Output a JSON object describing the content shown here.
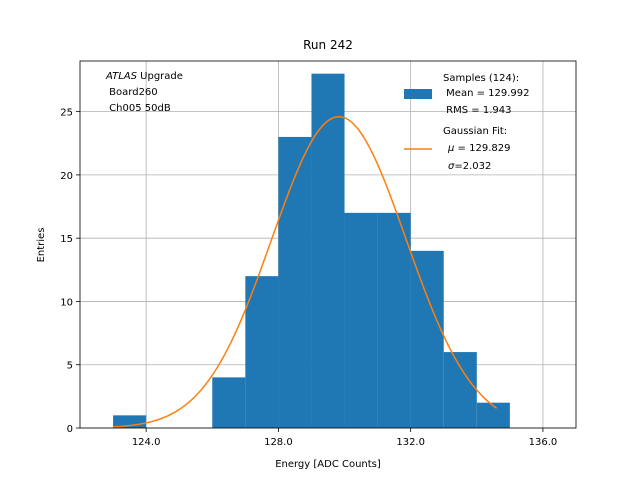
{
  "chart_data": {
    "type": "bar",
    "title": "Run 242",
    "xlabel": "Energy [ADC Counts]",
    "ylabel": "Entries",
    "xlim": [
      122.0,
      137.0
    ],
    "ylim": [
      0,
      29
    ],
    "xticks": [
      124.0,
      128.0,
      132.0,
      136.0
    ],
    "xtick_labels": [
      "124.0",
      "128.0",
      "132.0",
      "136.0"
    ],
    "yticks": [
      0,
      5,
      10,
      15,
      20,
      25
    ],
    "ytick_labels": [
      "0",
      "5",
      "10",
      "15",
      "20",
      "25"
    ],
    "grid": true,
    "bar_color": "#1f77b4",
    "fit_color": "#ff7f0e",
    "bins": [
      {
        "left": 123,
        "right": 124,
        "count": 1
      },
      {
        "left": 124,
        "right": 125,
        "count": 0
      },
      {
        "left": 125,
        "right": 126,
        "count": 0
      },
      {
        "left": 126,
        "right": 127,
        "count": 4
      },
      {
        "left": 127,
        "right": 128,
        "count": 12
      },
      {
        "left": 128,
        "right": 129,
        "count": 23
      },
      {
        "left": 129,
        "right": 130,
        "count": 28
      },
      {
        "left": 130,
        "right": 131,
        "count": 17
      },
      {
        "left": 131,
        "right": 132,
        "count": 17
      },
      {
        "left": 132,
        "right": 133,
        "count": 14
      },
      {
        "left": 133,
        "right": 134,
        "count": 6
      },
      {
        "left": 134,
        "right": 135,
        "count": 2
      }
    ],
    "fit": {
      "mu": 129.829,
      "sigma": 2.032,
      "peak": 24.6,
      "x_range": [
        123.0,
        134.6
      ]
    },
    "annotation": {
      "line1_italic": "ATLAS",
      "line1_rest": " Upgrade",
      "line2": " Board260",
      "line3": " Ch005 50dB"
    },
    "legend": {
      "placement": "top-right",
      "samples_title": "Samples (124):",
      "samples_mean": " Mean = 129.992",
      "samples_rms": " RMS = 1.943",
      "fit_title": "Gaussian Fit:",
      "fit_mu_symbol": "μ",
      "fit_mu_value": " = 129.829",
      "fit_sigma_symbol": "σ",
      "fit_sigma_value": "=2.032"
    }
  }
}
